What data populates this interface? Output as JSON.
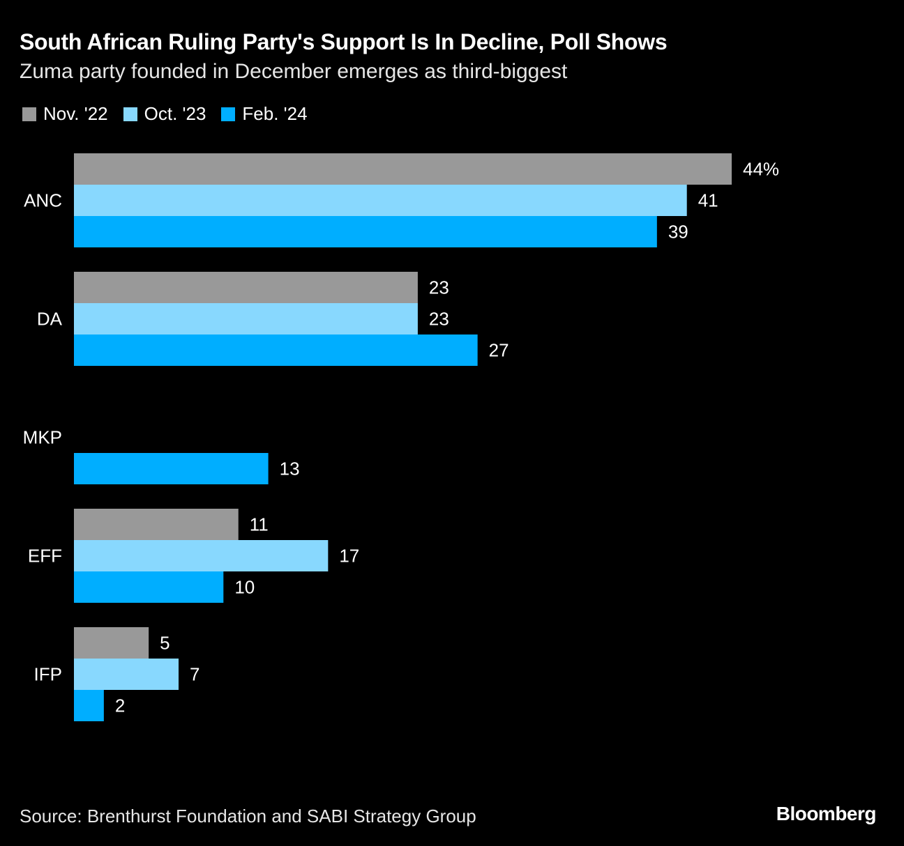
{
  "chart_data": {
    "type": "bar",
    "orientation": "horizontal",
    "title": "South African Ruling Party's Support Is In Decline, Poll Shows",
    "subtitle": "Zuma party founded in December emerges as third-biggest",
    "categories": [
      "ANC",
      "DA",
      "MKP",
      "EFF",
      "IFP"
    ],
    "unit": "%",
    "series": [
      {
        "name": "Nov. '22",
        "color": "#999999",
        "values": [
          44,
          23,
          null,
          11,
          5
        ]
      },
      {
        "name": "Oct. '23",
        "color": "#88d8fe",
        "values": [
          41,
          23,
          null,
          17,
          7
        ]
      },
      {
        "name": "Feb. '24",
        "color": "#00aeff",
        "values": [
          39,
          27,
          13,
          10,
          2
        ]
      }
    ],
    "xlim": [
      0,
      44
    ],
    "grid": false,
    "legend": "top-left",
    "source": "Source: Brenthurst Foundation and SABI Strategy Group",
    "brand": "Bloomberg"
  }
}
